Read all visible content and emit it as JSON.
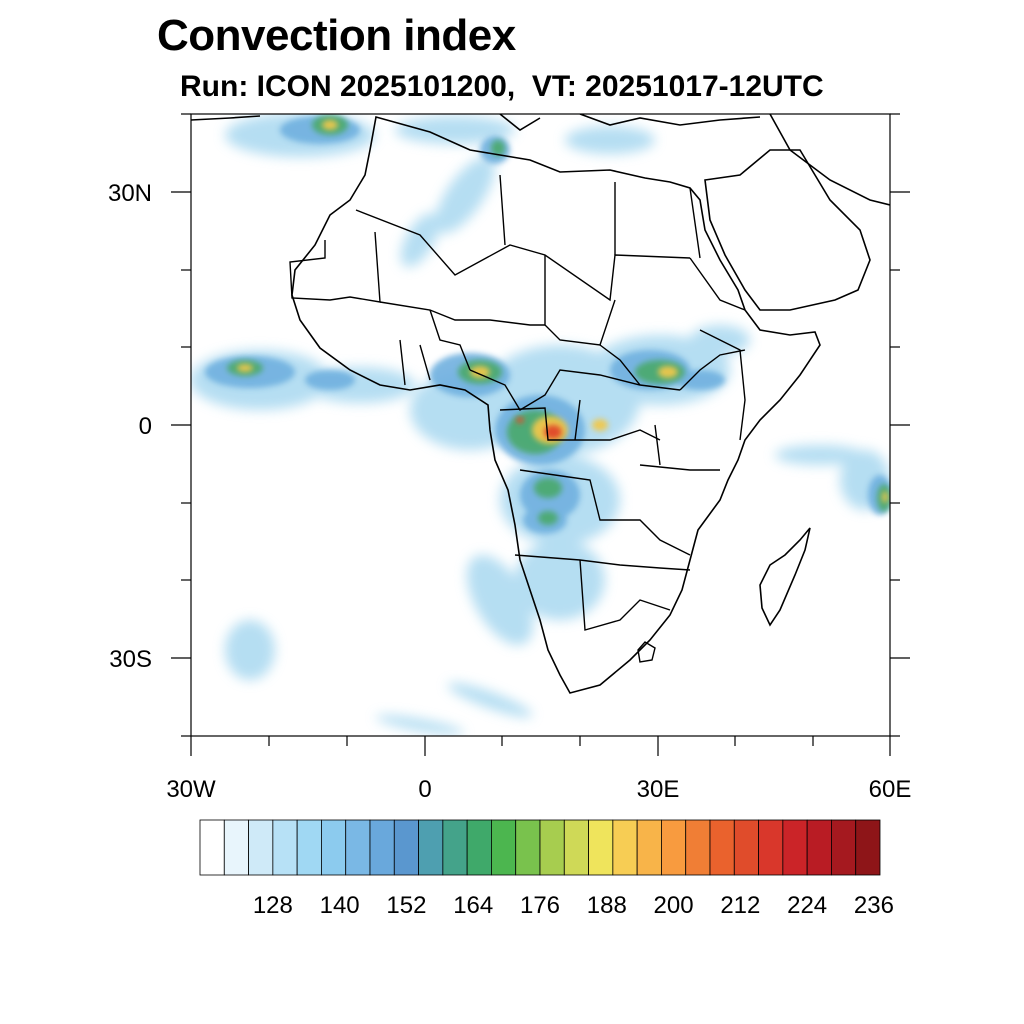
{
  "title": "Convection index",
  "subtitle": "Run: ICON 2025101200,  VT: 20251017-12UTC",
  "axes": {
    "lat_labels": [
      "30N",
      "0",
      "30S"
    ],
    "lon_labels": [
      "30W",
      "0",
      "30E",
      "60E"
    ]
  },
  "colorbar": {
    "labels": [
      "128",
      "140",
      "152",
      "164",
      "176",
      "188",
      "200",
      "212",
      "224",
      "236"
    ],
    "colors": [
      "#ffffff",
      "#e8f5fc",
      "#cfeaf8",
      "#b7e1f6",
      "#a0d8f3",
      "#8ccbee",
      "#7ab8e5",
      "#69a8dc",
      "#5a97cf",
      "#4e9fb0",
      "#44a38a",
      "#3fa96a",
      "#4cb64f",
      "#79c24d",
      "#a7cd4f",
      "#cfd957",
      "#efe45c",
      "#f7cd54",
      "#f8b449",
      "#f89b3f",
      "#f07e35",
      "#ea622d",
      "#e04c2b",
      "#d9372b",
      "#cb2428",
      "#b91c24",
      "#a5191f",
      "#8e1518"
    ]
  }
}
